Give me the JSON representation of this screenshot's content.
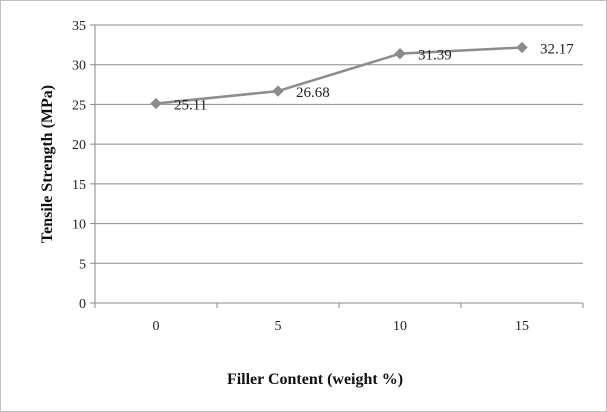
{
  "chart_data": {
    "type": "line",
    "title": "",
    "xlabel": "Filler Content (weight %)",
    "ylabel": "Tensile Strength (MPa)",
    "categories": [
      "0",
      "5",
      "10",
      "15"
    ],
    "values": [
      25.11,
      26.68,
      31.39,
      32.17
    ],
    "data_labels": [
      "25.11",
      "26.68",
      "31.39",
      "32.17"
    ],
    "yticks": [
      "0",
      "5",
      "10",
      "15",
      "20",
      "25",
      "30",
      "35"
    ],
    "ytick_values": [
      0,
      5,
      10,
      15,
      20,
      25,
      30,
      35
    ],
    "ylim": [
      0,
      35
    ],
    "grid": true,
    "legend": "none",
    "marker": "diamond",
    "colors": {
      "series": "#8c8c8c",
      "grid": "#8a8a8a",
      "axis": "#8a8a8a"
    }
  }
}
